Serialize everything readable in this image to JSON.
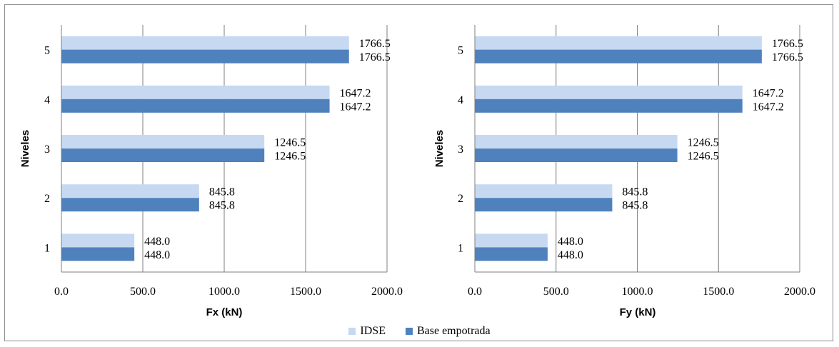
{
  "chart_data": [
    {
      "type": "bar",
      "orientation": "horizontal",
      "categories": [
        "1",
        "2",
        "3",
        "4",
        "5"
      ],
      "series": [
        {
          "name": "IDSE",
          "values": [
            448.0,
            845.8,
            1246.5,
            1647.2,
            1766.5
          ],
          "color": "#c6d9f1"
        },
        {
          "name": "Base empotrada",
          "values": [
            448.0,
            845.8,
            1246.5,
            1647.2,
            1766.5
          ],
          "color": "#4f81bd"
        }
      ],
      "xlabel": "Fx (kN)",
      "ylabel": "Niveles",
      "xlim": [
        0,
        2000
      ],
      "xticks": [
        "0.0",
        "500.0",
        "1000.0",
        "1500.0",
        "2000.0"
      ],
      "grid": "vertical",
      "legend": "bottom-center"
    },
    {
      "type": "bar",
      "orientation": "horizontal",
      "categories": [
        "1",
        "2",
        "3",
        "4",
        "5"
      ],
      "series": [
        {
          "name": "IDSE",
          "values": [
            448.0,
            845.8,
            1246.5,
            1647.2,
            1766.5
          ],
          "color": "#c6d9f1"
        },
        {
          "name": "Base empotrada",
          "values": [
            448.0,
            845.8,
            1246.5,
            1647.2,
            1766.5
          ],
          "color": "#4f81bd"
        }
      ],
      "xlabel": "Fy (kN)",
      "ylabel": "Niveles",
      "xlim": [
        0,
        2000
      ],
      "xticks": [
        "0.0",
        "500.0",
        "1000.0",
        "1500.0",
        "2000.0"
      ],
      "grid": "vertical",
      "legend": "bottom-center"
    }
  ],
  "legend": {
    "items": [
      {
        "label": "IDSE",
        "color": "#c6d9f1"
      },
      {
        "label": "Base empotrada",
        "color": "#4f81bd"
      }
    ]
  }
}
